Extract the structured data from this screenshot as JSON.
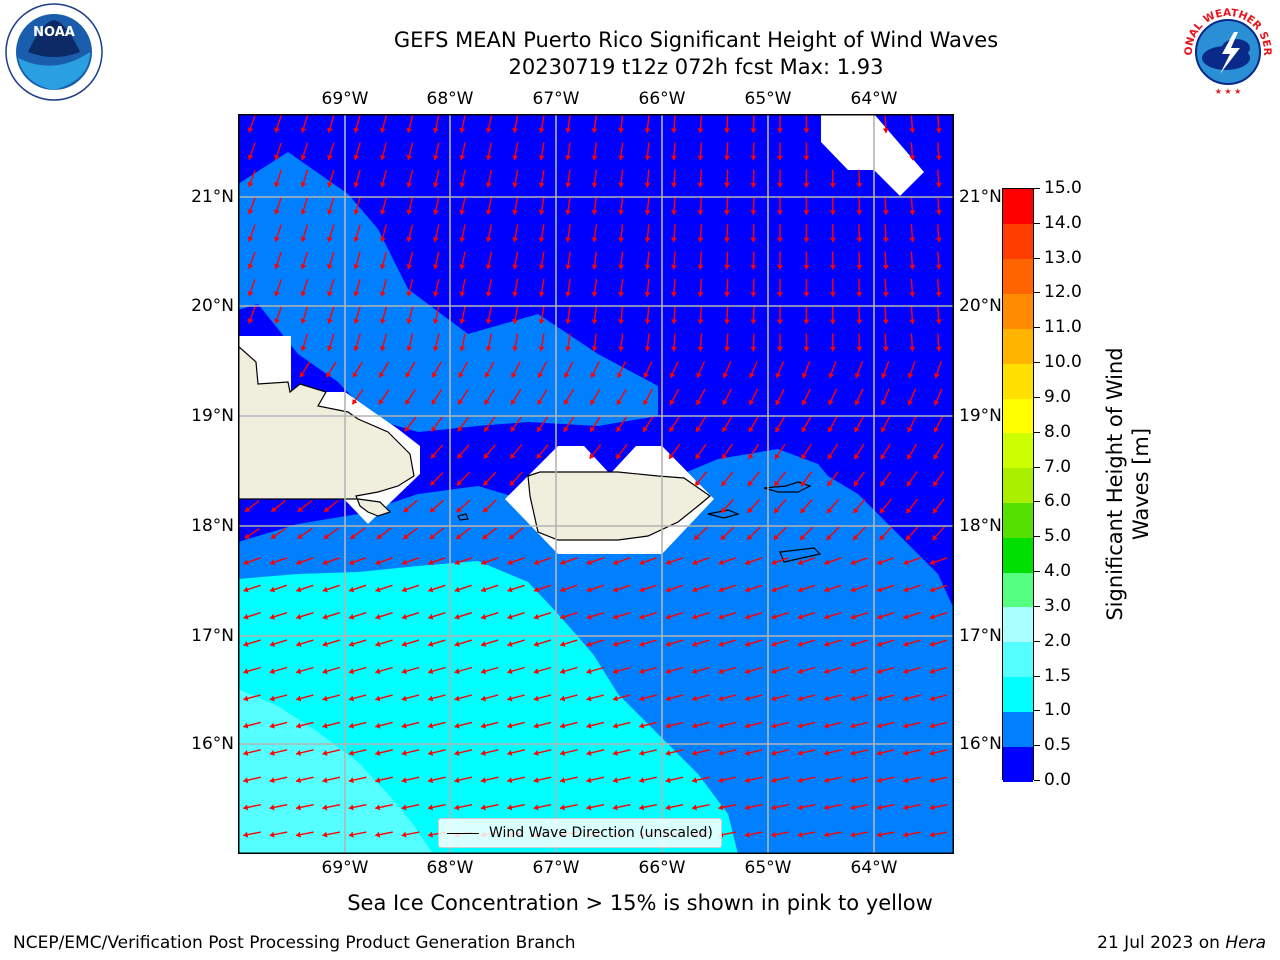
{
  "title": "GEFS MEAN Puerto Rico Significant Height of Wind Waves",
  "subtitle_line": "20230719 t12z 072h fcst   Max: 1.93",
  "caption": "Sea Ice Concentration > 15% is shown in pink to yellow",
  "footer_left": "NCEP/EMC/Verification Post Processing Product Generation Branch",
  "footer_date": "21 Jul 2023 on ",
  "footer_host": "Hera",
  "legend_label": "Wind Wave Direction (unscaled)",
  "logos": {
    "noaa_text": "NOAA",
    "nws_text": "NATIONAL WEATHER SERVICE"
  },
  "map": {
    "lon_labels": [
      "69°W",
      "68°W",
      "67°W",
      "66°W",
      "65°W",
      "64°W"
    ],
    "lat_labels": [
      "21°N",
      "20°N",
      "19°N",
      "18°N",
      "17°N",
      "16°N"
    ],
    "ocean_low_color": "#0000ff",
    "ocean_mid_color": "#0080ff",
    "ocean_high_color": "#00ffff",
    "ocean_highest_color": "#55ffff",
    "land_color": "#f0eedc",
    "arrow_color": "#ff0000"
  },
  "colorbar": {
    "label": "Significant Height of Wind Waves [m]",
    "ticks": [
      "0.0",
      "0.5",
      "1.0",
      "1.5",
      "2.0",
      "3.0",
      "4.0",
      "5.0",
      "6.0",
      "7.0",
      "8.0",
      "9.0",
      "10.0",
      "11.0",
      "12.0",
      "13.0",
      "14.0",
      "15.0"
    ],
    "colors": [
      "#0000ff",
      "#0080ff",
      "#00ffff",
      "#55ffff",
      "#aaffff",
      "#55ff80",
      "#00e000",
      "#55e000",
      "#aaee00",
      "#ccff00",
      "#ffff00",
      "#ffe000",
      "#ffb400",
      "#ff8c00",
      "#ff6400",
      "#ff3c00",
      "#ff0000"
    ]
  }
}
